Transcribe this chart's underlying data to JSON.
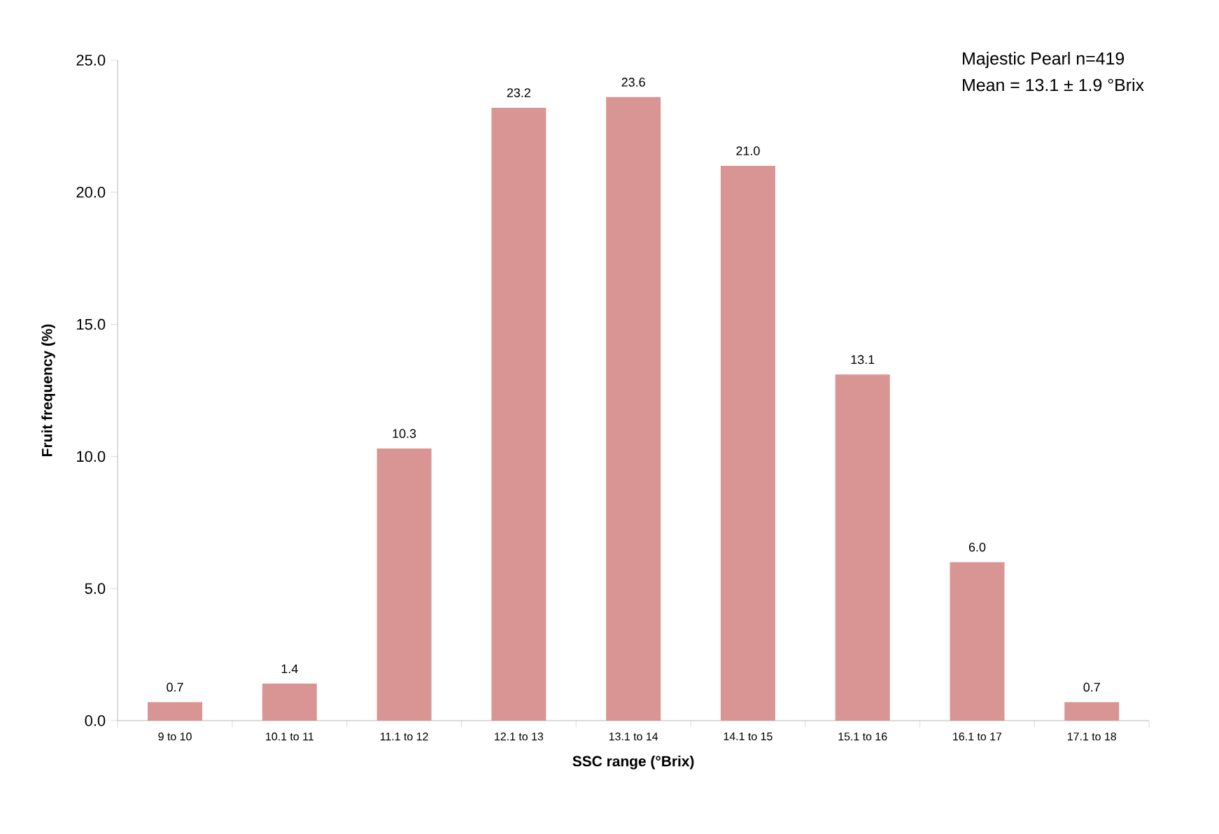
{
  "chart_data": {
    "type": "bar",
    "categories": [
      "9 to 10",
      "10.1 to 11",
      "11.1 to 12",
      "12.1 to 13",
      "13.1 to 14",
      "14.1 to 15",
      "15.1 to 16",
      "16.1 to 17",
      "17.1 to 18"
    ],
    "values": [
      0.7,
      1.4,
      10.3,
      23.2,
      23.6,
      21.0,
      13.1,
      6.0,
      0.7
    ],
    "value_labels": [
      "0.7",
      "1.4",
      "10.3",
      "23.2",
      "23.6",
      "21.0",
      "13.1",
      "6.0",
      "0.7"
    ],
    "color": "#d99594",
    "xlabel": "SSC range (°Brix)",
    "ylabel": "Fruit frequency (%)",
    "ylim": [
      0,
      25
    ],
    "yticks": [
      {
        "value": 0,
        "label": "0.0"
      },
      {
        "value": 5,
        "label": "5.0"
      },
      {
        "value": 10,
        "label": "10.0"
      },
      {
        "value": 15,
        "label": "15.0"
      },
      {
        "value": 20,
        "label": "20.0"
      },
      {
        "value": 25,
        "label": "25.0"
      }
    ],
    "annotations": [
      "Majestic Pearl n=419",
      "Mean = 13.1 ± 1.9 °Brix"
    ]
  }
}
